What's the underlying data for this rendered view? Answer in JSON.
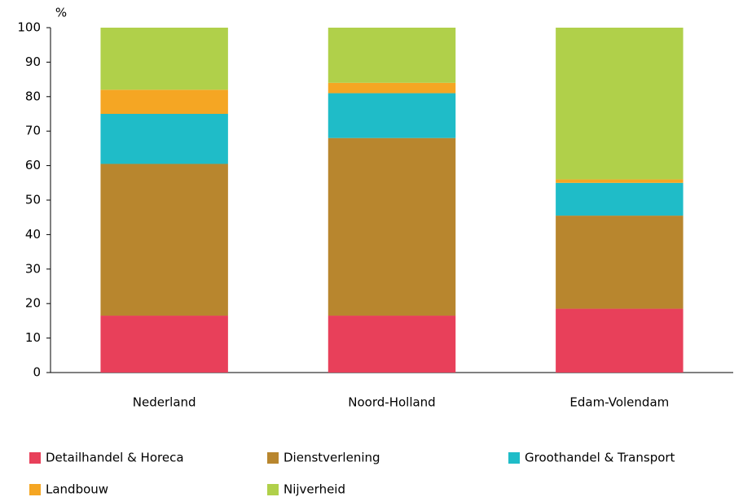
{
  "chart_data": {
    "type": "stacked_bar",
    "y_axis_label": "%",
    "categories": [
      "Nederland",
      "Noord-Holland",
      "Edam-Volendam"
    ],
    "series": [
      {
        "name": "Detailhandel & Horeca",
        "color": "#e8405a",
        "values": [
          16.5,
          16.5,
          18.5
        ]
      },
      {
        "name": "Dienstverlening",
        "color": "#b8862e",
        "values": [
          44,
          51.5,
          27
        ]
      },
      {
        "name": "Groothandel & Transport",
        "color": "#1fbcc8",
        "values": [
          14.5,
          13,
          9.5
        ]
      },
      {
        "name": "Landbouw",
        "color": "#f5a623",
        "values": [
          7,
          3,
          1
        ]
      },
      {
        "name": "Nijverheid",
        "color": "#b0d04a",
        "values": [
          18,
          16,
          44
        ]
      }
    ],
    "ylim": [
      0,
      100
    ],
    "yticks": [
      0,
      10,
      20,
      30,
      40,
      50,
      60,
      70,
      80,
      90,
      100
    ],
    "grid": false
  }
}
